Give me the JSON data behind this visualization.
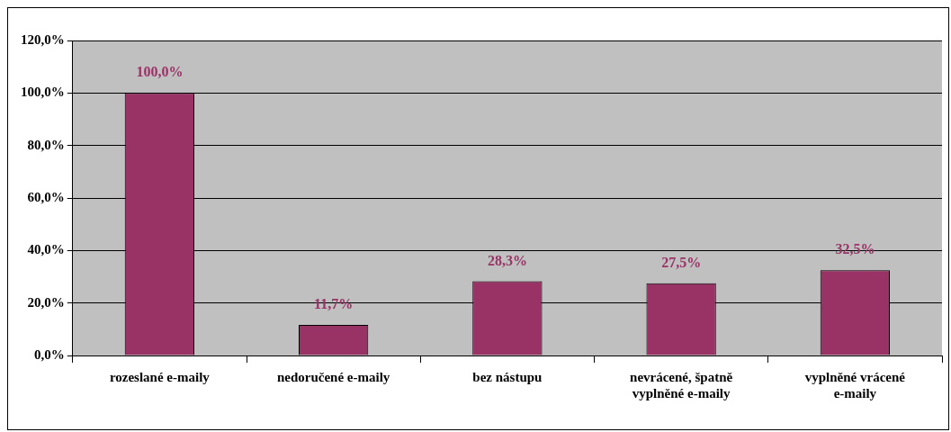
{
  "chart_data": {
    "type": "bar",
    "categories": [
      "rozeslané e-maily",
      "nedoručené e-maily",
      "bez nástupu",
      "nevrácené, špatně vyplněné e-maily",
      "vyplněné vrácené e-maily"
    ],
    "values": [
      100,
      11.7,
      28.3,
      27.5,
      32.5
    ],
    "value_labels": [
      "100,0%",
      "11,7%",
      "28,3%",
      "27,5%",
      "32,5%"
    ],
    "color": "#993366",
    "ylim": [
      0,
      120
    ],
    "yticks": [
      {
        "value": 0,
        "label": "0,0%"
      },
      {
        "value": 20,
        "label": "20,0%"
      },
      {
        "value": 40,
        "label": "40,0%"
      },
      {
        "value": 60,
        "label": "60,0%"
      },
      {
        "value": 80,
        "label": "80,0%"
      },
      {
        "value": 100,
        "label": "100,0%"
      },
      {
        "value": 120,
        "label": "120,0%"
      }
    ],
    "grid": "y",
    "legend": false
  }
}
